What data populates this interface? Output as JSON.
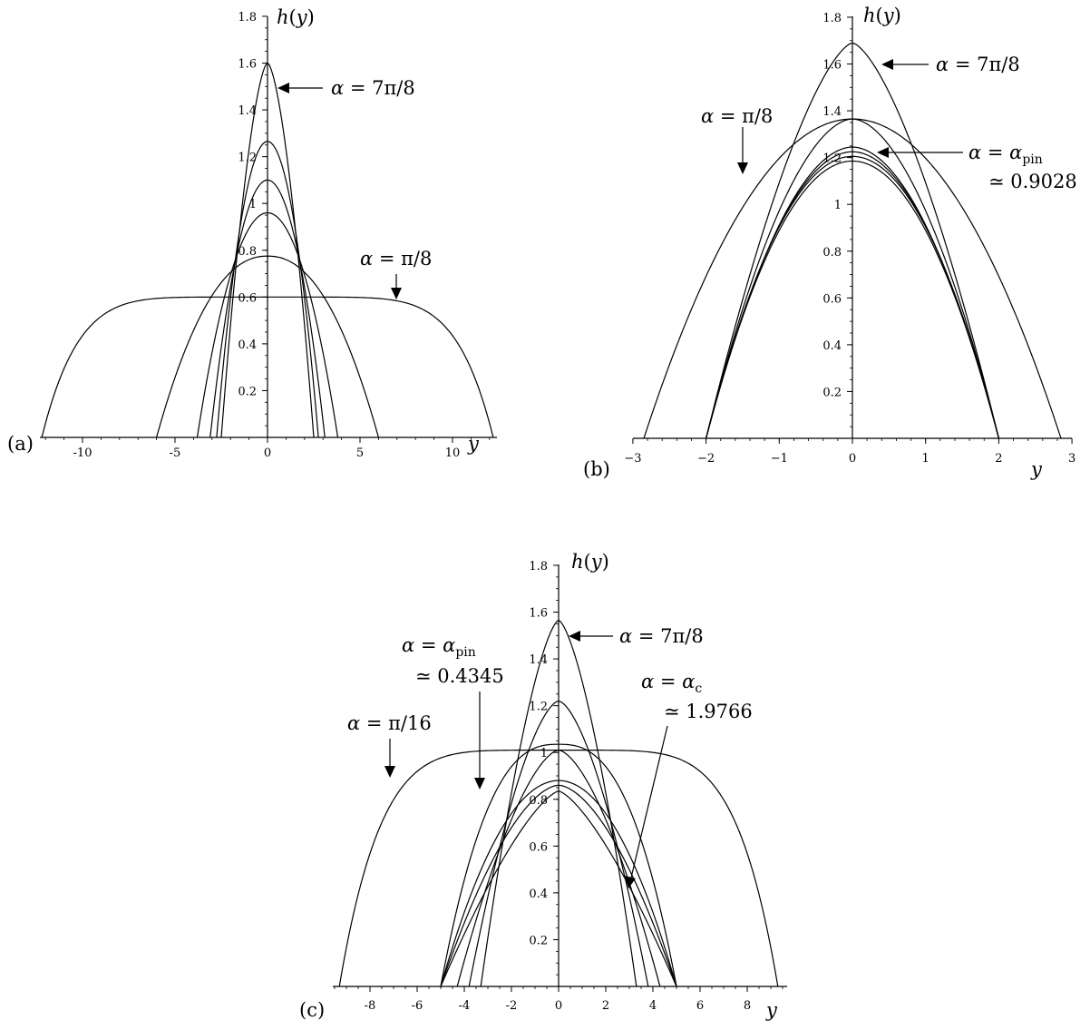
{
  "chart_data": [
    {
      "type": "line",
      "panel_label": "(a)",
      "xlabel": "y",
      "ylabel": "h(y)",
      "xlim": [
        -12.5,
        12.5
      ],
      "ylim": [
        0,
        1.8
      ],
      "x_ticks": [
        "-10",
        "-5",
        "0",
        "5",
        "10"
      ],
      "y_ticks": [
        "0.2",
        "0.4",
        "0.6",
        "0.8",
        "1",
        "1.2",
        "1.4",
        "1.6",
        "1.8"
      ],
      "annotations": [
        "α = 7π/8",
        "α = π/8"
      ],
      "series": [
        {
          "halfwidth": 12.2,
          "peak": 0.6,
          "exponent": 6.5
        },
        {
          "halfwidth": 6.0,
          "peak": 0.775,
          "exponent": 2.2
        },
        {
          "halfwidth": 3.8,
          "peak": 0.96,
          "exponent": 2.0
        },
        {
          "halfwidth": 3.1,
          "peak": 1.1,
          "exponent": 2.0
        },
        {
          "halfwidth": 2.75,
          "peak": 1.265,
          "exponent": 2.0
        },
        {
          "halfwidth": 2.5,
          "peak": 1.6,
          "exponent": 1.6
        }
      ]
    },
    {
      "type": "line",
      "panel_label": "(b)",
      "xlabel": "y",
      "ylabel": "h(y)",
      "xlim": [
        -3,
        3
      ],
      "ylim": [
        0,
        1.8
      ],
      "x_ticks": [
        "−3",
        "−2",
        "−1",
        "0",
        "1",
        "2",
        "3"
      ],
      "y_ticks": [
        "0.2",
        "0.4",
        "0.6",
        "0.8",
        "1",
        "1.2",
        "1.4",
        "1.6",
        "1.8"
      ],
      "annotations": [
        "α = 7π/8",
        "α = π/8",
        "α = α_pin ≃ 0.9028"
      ],
      "series": [
        {
          "halfwidth": 2.85,
          "peak": 1.365,
          "exponent": 2.0
        },
        {
          "halfwidth": 2.0,
          "peak": 1.69,
          "exponent": 1.5
        },
        {
          "halfwidth": 2.0,
          "peak": 1.365,
          "exponent": 1.8
        },
        {
          "halfwidth": 2.0,
          "peak": 1.245,
          "exponent": 1.9
        },
        {
          "halfwidth": 2.0,
          "peak": 1.225,
          "exponent": 1.95
        },
        {
          "halfwidth": 2.0,
          "peak": 1.205,
          "exponent": 2.0
        },
        {
          "halfwidth": 2.0,
          "peak": 1.185,
          "exponent": 2.0
        }
      ]
    },
    {
      "type": "line",
      "panel_label": "(c)",
      "xlabel": "y",
      "ylabel": "h(y)",
      "xlim": [
        -9.5,
        9.5
      ],
      "ylim": [
        0,
        1.8
      ],
      "x_ticks": [
        "-8",
        "-6",
        "-4",
        "-2",
        "0",
        "2",
        "4",
        "6",
        "8"
      ],
      "y_ticks": [
        "0.2",
        "0.4",
        "0.6",
        "0.8",
        "1",
        "1.2",
        "1.4",
        "1.6",
        "1.8"
      ],
      "annotations": [
        "α = 7π/8",
        "α = α_pin ≃ 0.4345",
        "α = α_c ≃ 1.9766",
        "α = π/16"
      ],
      "series": [
        {
          "halfwidth": 9.3,
          "peak": 1.01,
          "exponent": 5.5
        },
        {
          "halfwidth": 5.0,
          "peak": 1.035,
          "exponent": 2.6
        },
        {
          "halfwidth": 5.0,
          "peak": 0.88,
          "exponent": 2.0
        },
        {
          "halfwidth": 5.0,
          "peak": 0.86,
          "exponent": 1.7
        },
        {
          "halfwidth": 5.0,
          "peak": 0.835,
          "exponent": 1.4
        },
        {
          "halfwidth": 4.3,
          "peak": 1.01,
          "exponent": 1.6
        },
        {
          "halfwidth": 3.8,
          "peak": 1.22,
          "exponent": 1.6
        },
        {
          "halfwidth": 3.3,
          "peak": 1.565,
          "exponent": 1.5
        }
      ]
    }
  ]
}
